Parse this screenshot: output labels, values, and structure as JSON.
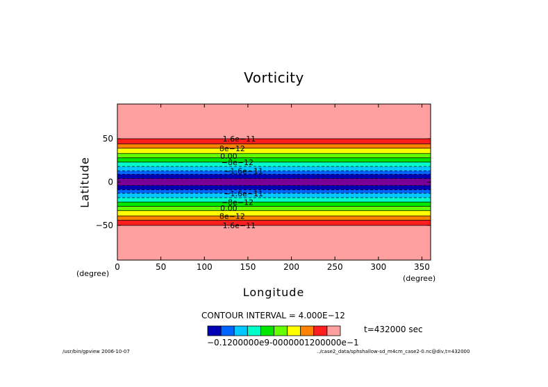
{
  "chart_data": {
    "type": "heatmap",
    "title": "Vorticity",
    "xlabel": "Longitude",
    "ylabel": "Latitude",
    "x_unit": "(degree)",
    "y_unit": "(degree)",
    "xlim": [
      0,
      360
    ],
    "ylim": [
      -90,
      90
    ],
    "x_ticks": [
      0,
      50,
      100,
      150,
      200,
      250,
      300,
      350
    ],
    "y_ticks": [
      50,
      0,
      -50
    ],
    "y_tick_labels": [
      "50",
      "0",
      "−50"
    ],
    "contour_interval_text": "CONTOUR INTERVAL = 4.000E−12",
    "time_text": "t=432000 sec",
    "colorbar_labels_text": "−0.1200000e9-0000001200000e−1",
    "colorbar_colors": [
      "#0000b4",
      "#0064ff",
      "#00c8ff",
      "#00ffc8",
      "#00e600",
      "#64ff00",
      "#ffff00",
      "#ff8200",
      "#ff1e1e",
      "#ffa0a0"
    ],
    "bands": [
      {
        "lat_from": 50,
        "lat_to": 90,
        "color": "#ffa0a0"
      },
      {
        "lat_from": 44,
        "lat_to": 50,
        "color": "#ff1e1e"
      },
      {
        "lat_from": 39,
        "lat_to": 44,
        "color": "#ff8200"
      },
      {
        "lat_from": 33,
        "lat_to": 39,
        "color": "#ffff00"
      },
      {
        "lat_from": 28,
        "lat_to": 33,
        "color": "#64ff00"
      },
      {
        "lat_from": 23,
        "lat_to": 28,
        "color": "#00e600"
      },
      {
        "lat_from": 18,
        "lat_to": 23,
        "color": "#00ffc8"
      },
      {
        "lat_from": 13,
        "lat_to": 18,
        "color": "#00c8ff"
      },
      {
        "lat_from": 9,
        "lat_to": 13,
        "color": "#0064ff"
      },
      {
        "lat_from": 4,
        "lat_to": 9,
        "color": "#0000b4"
      },
      {
        "lat_from": -4,
        "lat_to": 4,
        "color": "#780096"
      },
      {
        "lat_from": -9,
        "lat_to": -4,
        "color": "#0000b4"
      },
      {
        "lat_from": -13,
        "lat_to": -9,
        "color": "#0064ff"
      },
      {
        "lat_from": -18,
        "lat_to": -13,
        "color": "#00c8ff"
      },
      {
        "lat_from": -23,
        "lat_to": -18,
        "color": "#00ffc8"
      },
      {
        "lat_from": -28,
        "lat_to": -23,
        "color": "#00e600"
      },
      {
        "lat_from": -33,
        "lat_to": -28,
        "color": "#64ff00"
      },
      {
        "lat_from": -39,
        "lat_to": -33,
        "color": "#ffff00"
      },
      {
        "lat_from": -44,
        "lat_to": -39,
        "color": "#ff8200"
      },
      {
        "lat_from": -50,
        "lat_to": -44,
        "color": "#ff1e1e"
      },
      {
        "lat_from": -90,
        "lat_to": -50,
        "color": "#ffa0a0"
      }
    ],
    "contour_lats_solid": [
      50,
      44,
      39,
      33,
      28,
      23,
      -23,
      -28,
      -33,
      -39,
      -44,
      -50
    ],
    "contour_lats_dashed": [
      18,
      13,
      9,
      4,
      -4,
      -9,
      -13,
      -18
    ],
    "contour_labels": [
      {
        "text": "1.6e−11",
        "lon": 140,
        "lat": 50
      },
      {
        "text": "8e−12",
        "lon": 132,
        "lat": 39
      },
      {
        "text": "0.00",
        "lon": 128,
        "lat": 30
      },
      {
        "text": "−8e−12",
        "lon": 138,
        "lat": 23
      },
      {
        "text": "−1.6e−11",
        "lon": 145,
        "lat": 13
      },
      {
        "text": "−1.6e−11",
        "lon": 145,
        "lat": -13
      },
      {
        "text": "−8e−12",
        "lon": 138,
        "lat": -23
      },
      {
        "text": "0.00",
        "lon": 128,
        "lat": -30
      },
      {
        "text": "8e−12",
        "lon": 132,
        "lat": -39
      },
      {
        "text": "1.6e−11",
        "lon": 140,
        "lat": -50
      }
    ]
  },
  "footer": {
    "left": "/usr/bin/gpview  2006-10-07",
    "right": "../case2_data/sphshallow-sd_m4cm_case2-0.nc@div,t=432000"
  }
}
